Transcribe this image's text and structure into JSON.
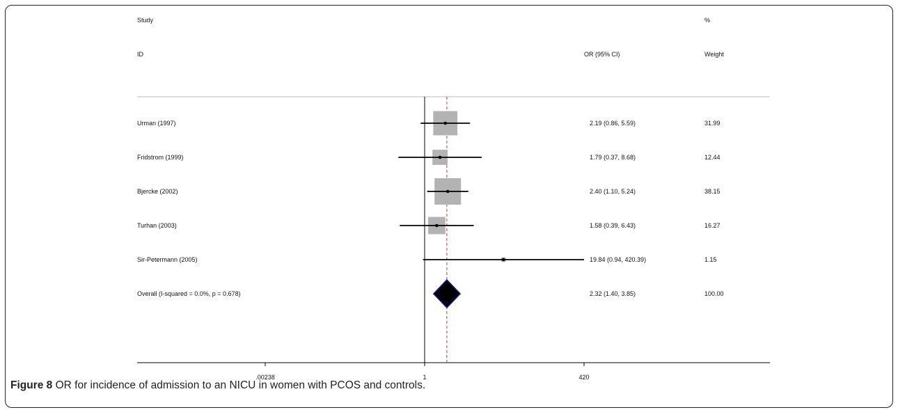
{
  "chart_data": {
    "type": "forest",
    "columns": {
      "study_line1": "Study",
      "study_line2": "ID",
      "ci": "OR (95% CI)",
      "weight_line1": "%",
      "weight_line2": "Weight"
    },
    "studies": [
      {
        "label": "Urman (1997)",
        "or": 2.19,
        "lo": 0.86,
        "hi": 5.59,
        "ci_text": "2.19 (0.86, 5.59)",
        "weight": 31.99,
        "weight_text": "31.99"
      },
      {
        "label": "Fridstrom (1999)",
        "or": 1.79,
        "lo": 0.37,
        "hi": 8.68,
        "ci_text": "1.79 (0.37, 8.68)",
        "weight": 12.44,
        "weight_text": "12.44"
      },
      {
        "label": "Bjercke (2002)",
        "or": 2.4,
        "lo": 1.1,
        "hi": 5.24,
        "ci_text": "2.40 (1.10, 5.24)",
        "weight": 38.15,
        "weight_text": "38.15"
      },
      {
        "label": "Turhan (2003)",
        "or": 1.58,
        "lo": 0.39,
        "hi": 6.43,
        "ci_text": "1.58 (0.39, 6.43)",
        "weight": 16.27,
        "weight_text": "16.27"
      },
      {
        "label": "Sir-Petermann (2005)",
        "or": 19.84,
        "lo": 0.94,
        "hi": 420.39,
        "ci_text": "19.84 (0.94, 420.39)",
        "weight": 1.15,
        "weight_text": "1.15"
      }
    ],
    "overall": {
      "label": "Overall  (I-squared = 0.0%, p = 0.678)",
      "or": 2.32,
      "lo": 1.4,
      "hi": 3.85,
      "ci_text": "2.32 (1.40, 3.85)",
      "weight": 100.0,
      "weight_text": "100.00"
    },
    "x_scale": "log",
    "x_ticks": [
      {
        "value": 0.00238,
        "label": ".00238"
      },
      {
        "value": 1,
        "label": "1"
      },
      {
        "value": 420,
        "label": "420"
      }
    ],
    "null_line": 1,
    "colors": {
      "box": "#b3b3b3",
      "line": "#000000",
      "diamond": "#000000",
      "diamond_edge": "#1a1aa0",
      "overall_line": "#c0392b"
    }
  },
  "caption": {
    "figure": "Figure 8",
    "text": " OR for incidence of admission to an NICU in women with PCOS and controls."
  }
}
